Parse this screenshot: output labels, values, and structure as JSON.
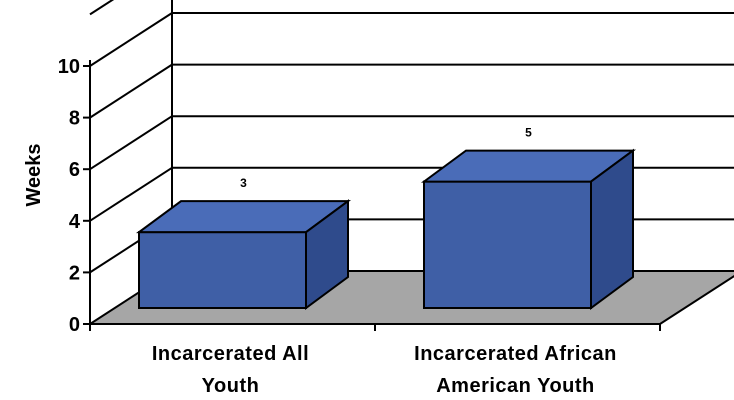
{
  "chart_data": {
    "type": "bar",
    "title": "",
    "xlabel": "",
    "ylabel": "Weeks",
    "categories": [
      "Incarcerated All Youth",
      "Incarcerated African American Youth"
    ],
    "category_lines": [
      [
        "Incarcerated All",
        "Youth"
      ],
      [
        "Incarcerated African",
        "American Youth"
      ]
    ],
    "values": [
      3,
      5
    ],
    "data_labels": [
      "3",
      "5"
    ],
    "ylim": [
      0,
      10
    ],
    "yticks": [
      "0",
      "2",
      "4",
      "6",
      "8",
      "10"
    ],
    "grid": true,
    "legend": "none",
    "style": "3d",
    "colors": {
      "bar_front": "#3F5FA6",
      "bar_top": "#4A6CB8",
      "bar_side": "#2F4B8C",
      "floor": "#A6A6A6",
      "wall": "#FFFFFF",
      "outline": "#000000"
    }
  }
}
